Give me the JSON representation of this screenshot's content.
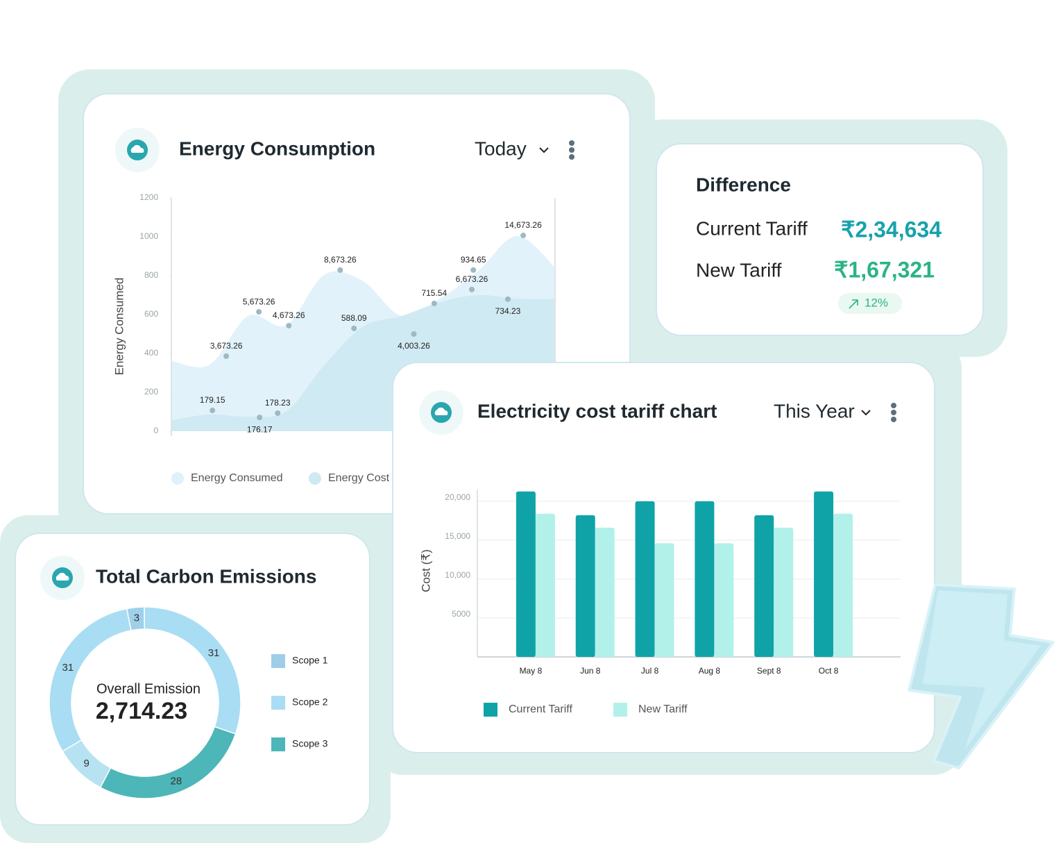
{
  "chart_data": [
    {
      "type": "area",
      "title": "Energy Consumption",
      "period": "Today",
      "ylabel": "Energy Consumed",
      "xlim": [
        0,
        100
      ],
      "ylim": [
        0,
        1200
      ],
      "yticks": [
        0,
        200,
        400,
        600,
        800,
        1000,
        1200
      ],
      "x": [
        0,
        10,
        20,
        30,
        40,
        50,
        60,
        70,
        80,
        90,
        100
      ],
      "series": [
        {
          "name": "Energy Consumed",
          "color": "#dff1fa",
          "values": [
            361,
            343,
            593,
            546,
            807,
            771,
            593,
            682,
            825,
            1004,
            843
          ]
        },
        {
          "name": "Energy Cost",
          "color": "#cde9f1",
          "values": [
            57,
            86,
            75,
            104,
            343,
            539,
            593,
            664,
            700,
            682,
            679
          ]
        }
      ],
      "points": {
        "color": "#9db9c2",
        "x": [
          10.7,
          14.3,
          22.8,
          23.0,
          27.7,
          30.6,
          44.0,
          47.6,
          63.2,
          68.5,
          78.3,
          78.7,
          87.7,
          91.7
        ],
        "values": [
          107,
          386,
          614,
          71,
          93,
          543,
          829,
          529,
          500,
          657,
          729,
          829,
          679,
          1007
        ],
        "annotations": [
          "179.15",
          "3,673.26",
          "5,673.26",
          "176.17",
          "178.23",
          "4,673.26",
          "8,673.26",
          "588.09",
          "4,003.26",
          "715.54",
          "6,673.26",
          "934.65",
          "734.23",
          "14,673.26"
        ]
      }
    },
    {
      "type": "bar",
      "title": "Electricity cost tariff chart",
      "period": "This Year",
      "ylabel": "Cost (₹)",
      "categories": [
        "May 8",
        "Jun 8",
        "Jul 8",
        "Aug 8",
        "Sept 8",
        "Oct 8"
      ],
      "ylim": [
        0,
        21500
      ],
      "yticks": [
        {
          "value": 5000,
          "label": "5000"
        },
        {
          "value": 10000,
          "label": "10,000"
        },
        {
          "value": 15000,
          "label": "15,000"
        },
        {
          "value": 20000,
          "label": "20,000"
        }
      ],
      "grid": true,
      "series": [
        {
          "name": "Current Tariff",
          "color": "#0fa3a8",
          "values": [
            21250,
            18200,
            20000,
            20000,
            18200,
            21250
          ]
        },
        {
          "name": "New Tariff",
          "color": "#b2f1ea",
          "values": [
            18400,
            16600,
            14600,
            14600,
            16600,
            18400
          ]
        }
      ]
    },
    {
      "type": "donut",
      "title": "Total Carbon Emissions",
      "center_label": "Overall Emission",
      "center_value": "2,714.23",
      "values": [
        3,
        31,
        28,
        9,
        31
      ],
      "colors": [
        "#9fd0ea",
        "#a8ddf3",
        "#4db6b8",
        "#b7e2f2",
        "#a8ddf3"
      ],
      "legend": [
        {
          "name": "Scope 1",
          "color": "#9fcde8"
        },
        {
          "name": "Scope 2",
          "color": "#a8ddf3"
        },
        {
          "name": "Scope 3",
          "color": "#4db6b8"
        }
      ]
    }
  ],
  "difference": {
    "title": "Difference",
    "rows": [
      {
        "label": "Current Tariff",
        "value": "₹2,34,634"
      },
      {
        "label": "New Tariff",
        "value": "₹1,67,321"
      }
    ],
    "change": "12%"
  }
}
